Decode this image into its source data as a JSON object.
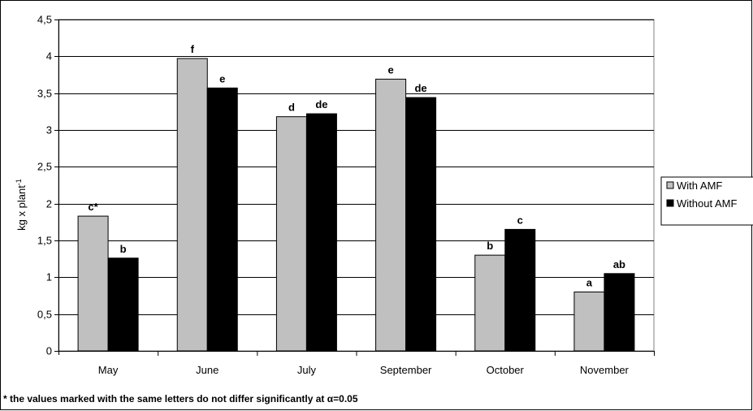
{
  "chart_data": {
    "type": "bar",
    "title": "",
    "xlabel": "",
    "ylabel": "kg x plant",
    "ylabel_superscript": "-1",
    "categories": [
      "May",
      "June",
      "July",
      "September",
      "October",
      "November"
    ],
    "series": [
      {
        "name": "With AMF",
        "color": "#c0c0c0",
        "values": [
          1.83,
          3.97,
          3.18,
          3.69,
          1.3,
          0.8
        ],
        "labels": [
          "c*",
          "f",
          "d",
          "e",
          "b",
          "a"
        ]
      },
      {
        "name": "Without AMF",
        "color": "#000000",
        "values": [
          1.26,
          3.57,
          3.22,
          3.44,
          1.65,
          1.05
        ],
        "labels": [
          "b",
          "e",
          "de",
          "de",
          "c",
          "ab"
        ]
      }
    ],
    "ylim": [
      0,
      4.5
    ],
    "yticks": [
      "0",
      "0,5",
      "1",
      "1,5",
      "2",
      "2,5",
      "3",
      "3,5",
      "4",
      "4,5"
    ],
    "grid": true,
    "legend": "right"
  },
  "footnote": "* the values marked with the same letters do not differ significantly at α=0.05"
}
